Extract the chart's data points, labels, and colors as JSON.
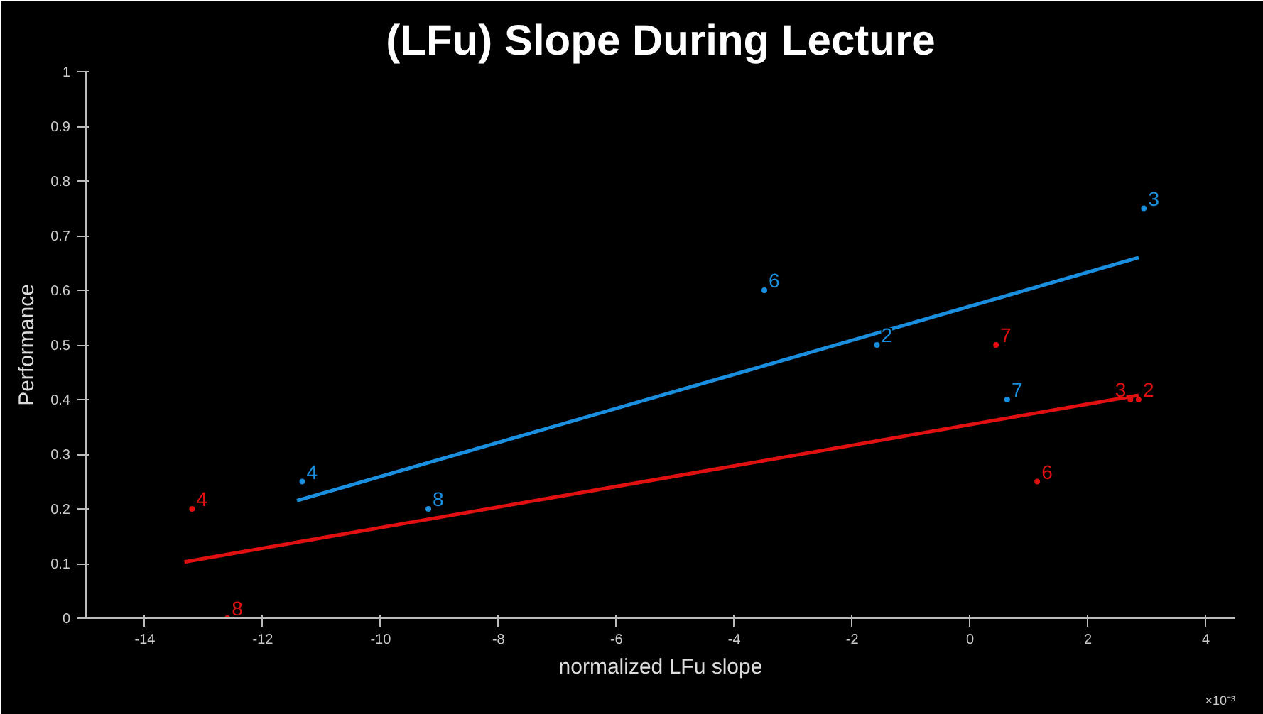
{
  "chart_data": {
    "type": "scatter",
    "title": "(LFu) Slope During Lecture",
    "xlabel": "normalized LFu slope",
    "ylabel": "Performance",
    "annotations": [
      "×10⁻³",
      {
        "text": "4",
        "x": -11.33,
        "y": 0.25
      },
      {
        "text": "8",
        "x": -9.19,
        "y": 0.2
      },
      {
        "text": "6",
        "x": -3.49,
        "y": 0.6
      },
      {
        "text": "2",
        "x": -1.58,
        "y": 0.5
      },
      {
        "text": "7",
        "x": 0.63,
        "y": 0.4
      },
      {
        "text": "3",
        "x": 2.95,
        "y": 0.75
      },
      {
        "text": "4",
        "x": -13.2,
        "y": 0.2
      },
      {
        "text": "8",
        "x": -12.6,
        "y": 0
      },
      {
        "text": "7",
        "x": 0.44,
        "y": 0.5
      },
      {
        "text": "3",
        "x": 2.72,
        "y": 0.4
      },
      {
        "text": "2",
        "x": 2.86,
        "y": 0.4
      },
      {
        "text": "6",
        "x": 1.14,
        "y": 0.25
      }
    ],
    "xlim": [
      -15,
      4.5
    ],
    "xticks": [
      -14,
      -12,
      -10,
      -8,
      -6,
      -4,
      -2,
      0,
      2,
      4
    ],
    "ylim": [
      0,
      1
    ],
    "yticks": [
      0,
      0.1,
      0.2,
      0.3,
      0.4,
      0.5,
      0.6,
      0.7,
      0.8,
      0.9,
      1
    ],
    "grid": false,
    "series": [
      {
        "color": "#1a8fe0",
        "marker": "circle",
        "x": [
          -11.33,
          -9.19,
          -3.49,
          -1.58,
          0.63,
          2.95
        ],
        "values": [
          0.25,
          0.2,
          0.6,
          0.5,
          0.4,
          0.75
        ]
      },
      {
        "color": "#e01010",
        "marker": "circle",
        "x": [
          -13.2,
          -12.6,
          0.44,
          2.72,
          2.86,
          1.14
        ],
        "values": [
          0.2,
          0,
          0.5,
          0.4,
          0.4,
          0.25
        ]
      },
      {
        "type": "line",
        "color": "#1a8fe0",
        "x": [
          -11.42,
          2.86
        ],
        "values": [
          0.215,
          0.66
        ]
      },
      {
        "type": "line",
        "color": "#e01010",
        "x": [
          -13.33,
          2.86
        ],
        "values": [
          0.103,
          0.408
        ]
      }
    ]
  }
}
